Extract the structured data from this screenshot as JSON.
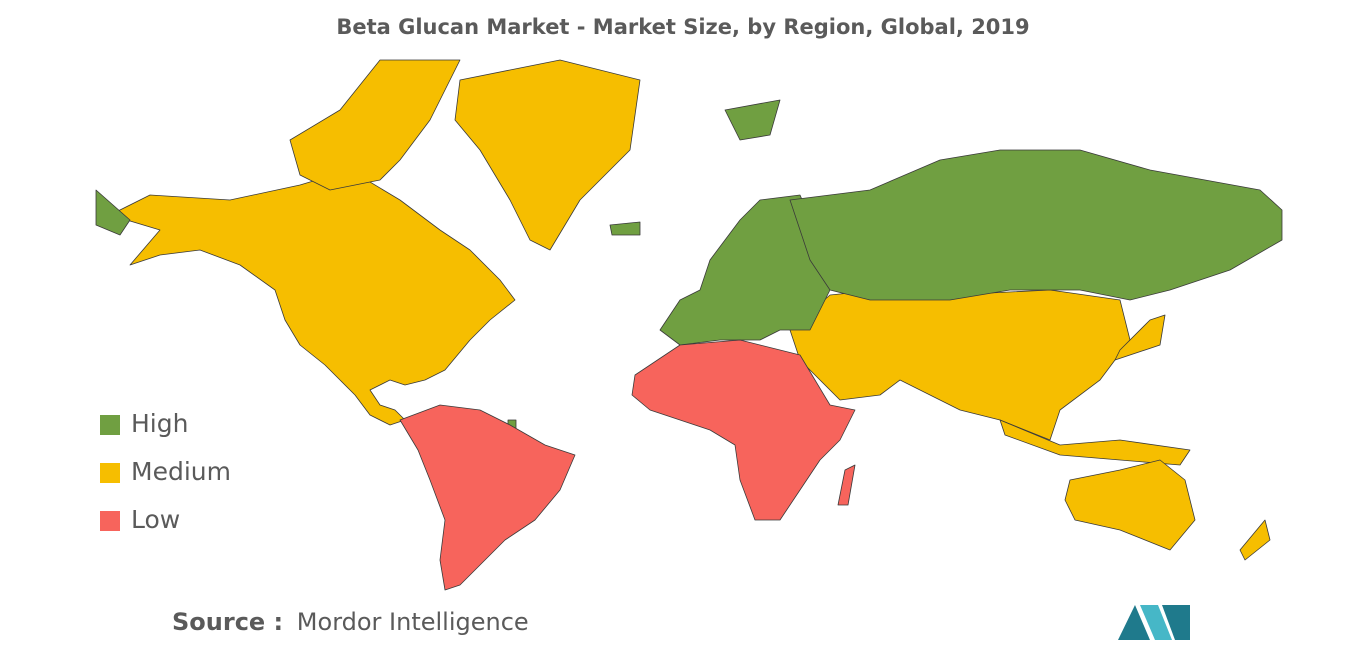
{
  "title": "Beta Glucan Market - Market Size, by Region, Global, 2019",
  "legend": [
    {
      "label": "High",
      "color": "#709f41"
    },
    {
      "label": "Medium",
      "color": "#f6be00"
    },
    {
      "label": "Low",
      "color": "#f7645c"
    }
  ],
  "source": {
    "label": "Source :",
    "text": "Mordor Intelligence"
  }
}
